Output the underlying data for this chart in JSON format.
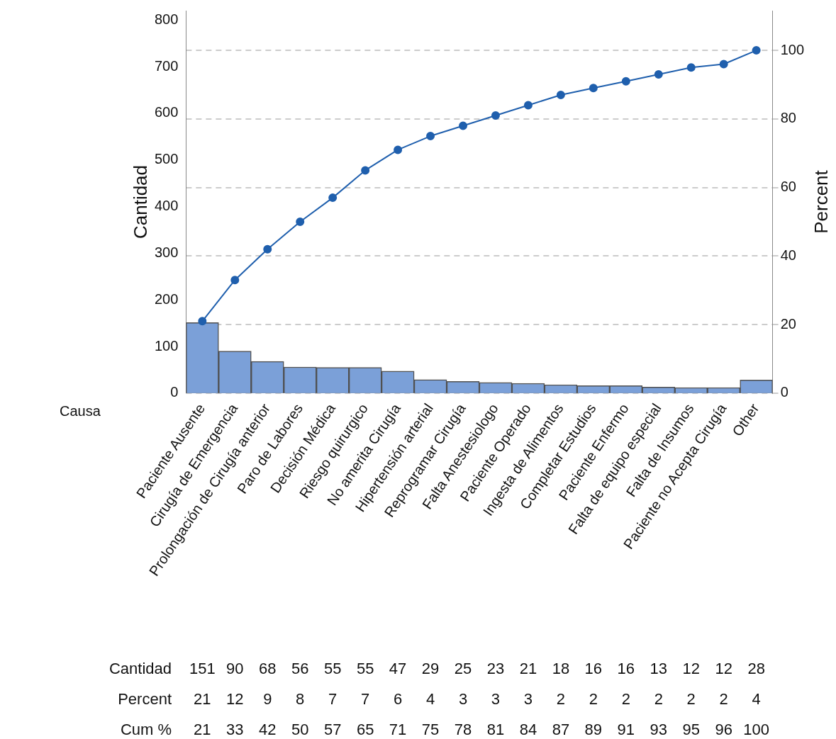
{
  "chart_data": {
    "type": "bar",
    "xlabel": "Causa",
    "ylabel": "Cantidad",
    "y2label": "Percent",
    "categories": [
      "Paciente Ausente",
      "Cirugía de Emergencia",
      "Prolongación de Cirugía anterior",
      "Paro de Labores",
      "Decisión Médica",
      "Riesgo quirurgico",
      "No amerita Cirugía",
      "Hipertensión arterial",
      "Reprogramar Cirugía",
      "Falta Anestesiologo",
      "Paciente Operado",
      "Ingesta de Alimentos",
      "Completar Estudios",
      "Paciente Enfermo",
      "Falta de equipo especial",
      "Falta de Insumos",
      "Paciente no Acepta Cirugía",
      "Other"
    ],
    "series": [
      {
        "type": "bar",
        "color": "#7ba0d8",
        "values": [
          151,
          90,
          68,
          56,
          55,
          55,
          47,
          29,
          25,
          23,
          21,
          18,
          16,
          16,
          13,
          12,
          12,
          28
        ]
      },
      {
        "type": "line",
        "axis": "y2",
        "color": "#1f5fad",
        "marker": "circle",
        "values": [
          21,
          33,
          42,
          50,
          57,
          65,
          71,
          75,
          78,
          81,
          84,
          87,
          89,
          91,
          93,
          95,
          96,
          100
        ]
      }
    ],
    "data_labels": true,
    "annotations": [
      "Cantidad",
      "Percent",
      "Cum %",
      "21",
      "12",
      "9",
      "8",
      "7",
      "7",
      "6",
      "4",
      "3",
      "3",
      "3",
      "2",
      "2",
      "2",
      "2",
      "2",
      "2",
      "4"
    ],
    "ylim": [
      0,
      820
    ],
    "yticks": [
      0,
      100,
      200,
      300,
      400,
      500,
      600,
      700,
      800
    ],
    "y2lim": [
      0,
      111.6
    ],
    "y2ticks": [
      0,
      20,
      40,
      60,
      80,
      100
    ],
    "grid": "y",
    "legend": false
  }
}
